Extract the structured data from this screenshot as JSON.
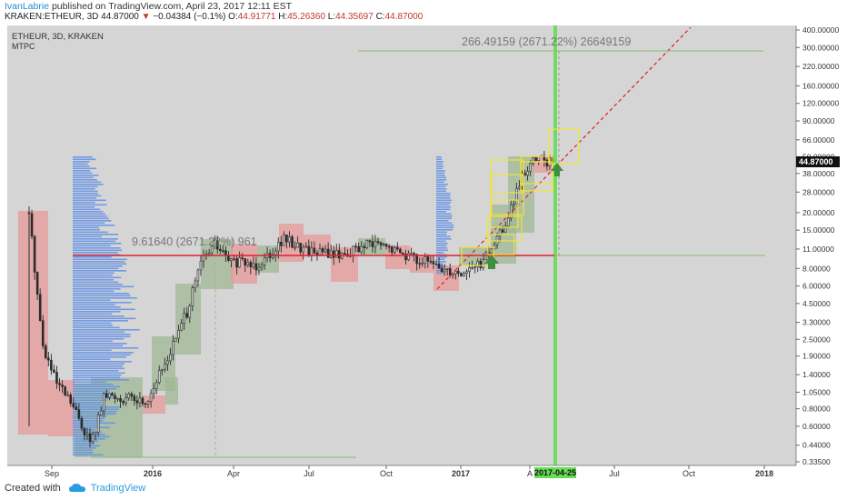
{
  "header": {
    "user": "IvanLabrie",
    "published": "published on TradingView.com, April 23, 2017 12:11 EST",
    "symbol": "KRAKEN:ETHEUR, 3D",
    "last": "44.87000",
    "change_arrow": "▼",
    "change": "−0.04384 (−0.1%)",
    "o_label": "O:",
    "o": "44.91771",
    "h_label": "H:",
    "h": "45.26360",
    "l_label": "L:",
    "l": "44.35697",
    "c_label": "C:",
    "c": "44.87000"
  },
  "legend": {
    "line1": "ETHEUR, 3D, KRAKEN",
    "line2": "MTPC"
  },
  "footer": {
    "created_with": "Created with",
    "brand": "TradingView",
    "logo_icon": "tradingview-cloud-icon"
  },
  "colors": {
    "up": "#2b2b2b",
    "green_zone": "#9fb894",
    "red_zone": "#e79a9a",
    "volume_profile": "#5f8fe8",
    "time_marker": "#66dd55",
    "yellow_box": "#f2e338",
    "trendline": "#e0202a"
  },
  "chart_data": {
    "type": "candlestick",
    "title": "ETHEUR, 3D, KRAKEN",
    "y_scale": "log",
    "ylim": [
      0.3,
      420
    ],
    "y_ticks": [
      "400.00000",
      "300.00000",
      "220.00000",
      "160.00000",
      "120.00000",
      "90.00000",
      "66.00000",
      "50.00000",
      "38.00000",
      "28.00000",
      "20.00000",
      "15.00000",
      "11.00000",
      "8.00000",
      "6.00000",
      "4.50000",
      "3.30000",
      "2.50000",
      "1.90000",
      "1.40000",
      "1.05000",
      "0.80000",
      "0.60000",
      "0.44000",
      "0.33500"
    ],
    "x_ticks": [
      "Sep",
      "2016",
      "Apr",
      "Jul",
      "Oct",
      "2017",
      "A",
      "Jul",
      "Oct",
      "2018"
    ],
    "last_price_label": "44.87000",
    "current_date_label": "2017-04-25",
    "annotations": [
      {
        "text": "9.61640 (2671.22%) 961"
      },
      {
        "text": "266.49159 (2671.22%) 26649159"
      }
    ],
    "price_path": [
      [
        0,
        20
      ],
      [
        0.02,
        2.2
      ],
      [
        0.04,
        1.2
      ],
      [
        0.06,
        0.9
      ],
      [
        0.09,
        0.45
      ],
      [
        0.11,
        1.0
      ],
      [
        0.14,
        0.95
      ],
      [
        0.17,
        0.9
      ],
      [
        0.2,
        1.8
      ],
      [
        0.23,
        4.0
      ],
      [
        0.25,
        9.0
      ],
      [
        0.27,
        12.0
      ],
      [
        0.29,
        9.0
      ],
      [
        0.33,
        8.5
      ],
      [
        0.37,
        13.0
      ],
      [
        0.4,
        11.0
      ],
      [
        0.45,
        10.0
      ],
      [
        0.5,
        12.0
      ],
      [
        0.55,
        10.0
      ],
      [
        0.6,
        8.0
      ],
      [
        0.63,
        7.5
      ],
      [
        0.66,
        9.0
      ],
      [
        0.69,
        16.0
      ],
      [
        0.72,
        40.0
      ],
      [
        0.74,
        49.0
      ],
      [
        0.76,
        44.87
      ]
    ]
  }
}
